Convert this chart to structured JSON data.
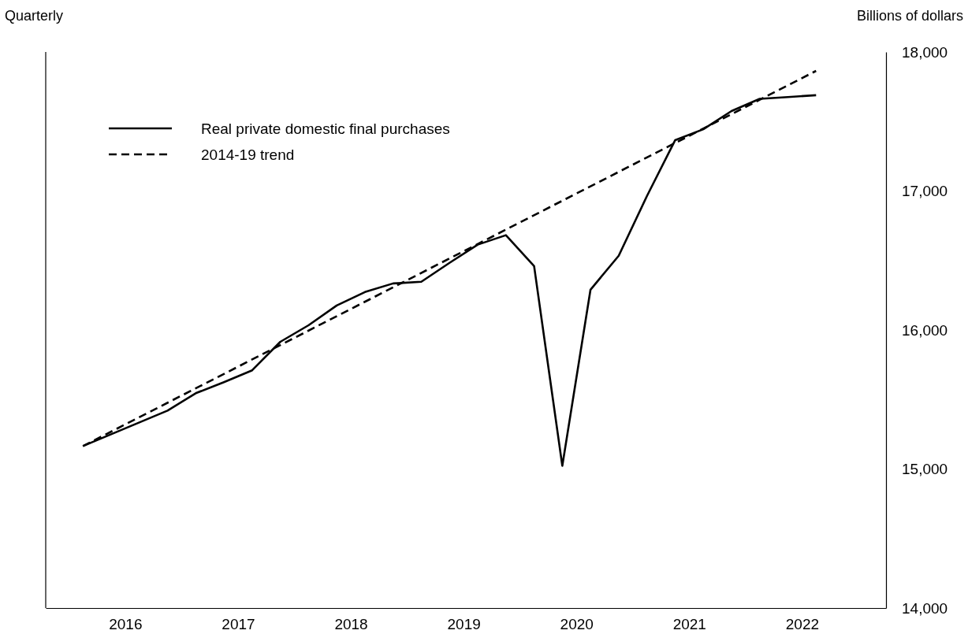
{
  "chart_data": {
    "type": "line",
    "subtitle": "Quarterly",
    "ylabel": "Billions of dollars",
    "xlim": [
      2015.67,
      2023.12
    ],
    "ylim": [
      14000,
      18000
    ],
    "xticks": [
      {
        "value": 2016.375,
        "label": "2016"
      },
      {
        "value": 2017.375,
        "label": "2017"
      },
      {
        "value": 2018.375,
        "label": "2018"
      },
      {
        "value": 2019.375,
        "label": "2019"
      },
      {
        "value": 2020.375,
        "label": "2020"
      },
      {
        "value": 2021.375,
        "label": "2021"
      },
      {
        "value": 2022.375,
        "label": "2022"
      }
    ],
    "yticks": [
      {
        "value": 14000,
        "label": "14,000"
      },
      {
        "value": 15000,
        "label": "15,000"
      },
      {
        "value": 16000,
        "label": "16,000"
      },
      {
        "value": 17000,
        "label": "17,000"
      },
      {
        "value": 18000,
        "label": "18,000"
      }
    ],
    "grid": false,
    "legend": "top left",
    "series": [
      {
        "name": "Real private domestic final purchases",
        "color": "#000000",
        "line_style": "solid",
        "x": [
          2016,
          2016.25,
          2016.5,
          2016.75,
          2017,
          2017.25,
          2017.5,
          2017.75,
          2018,
          2018.25,
          2018.5,
          2018.75,
          2019,
          2019.25,
          2019.5,
          2019.75,
          2020,
          2020.25,
          2020.5,
          2020.75,
          2021,
          2021.25,
          2021.5,
          2021.75,
          2022,
          2022.25,
          2022.5
        ],
        "values": [
          15165,
          15250,
          15335,
          15420,
          15545,
          15625,
          15710,
          15915,
          16034,
          16176,
          16273,
          16335,
          16347,
          16483,
          16614,
          16682,
          16460,
          15023,
          16290,
          16534,
          16963,
          17365,
          17444,
          17575,
          17663,
          17676,
          17689
        ]
      },
      {
        "name": "2014-19 trend",
        "color": "#000000",
        "line_style": "dashed",
        "x": [
          2016,
          2022.5
        ],
        "values": [
          15165,
          17864
        ]
      }
    ]
  }
}
